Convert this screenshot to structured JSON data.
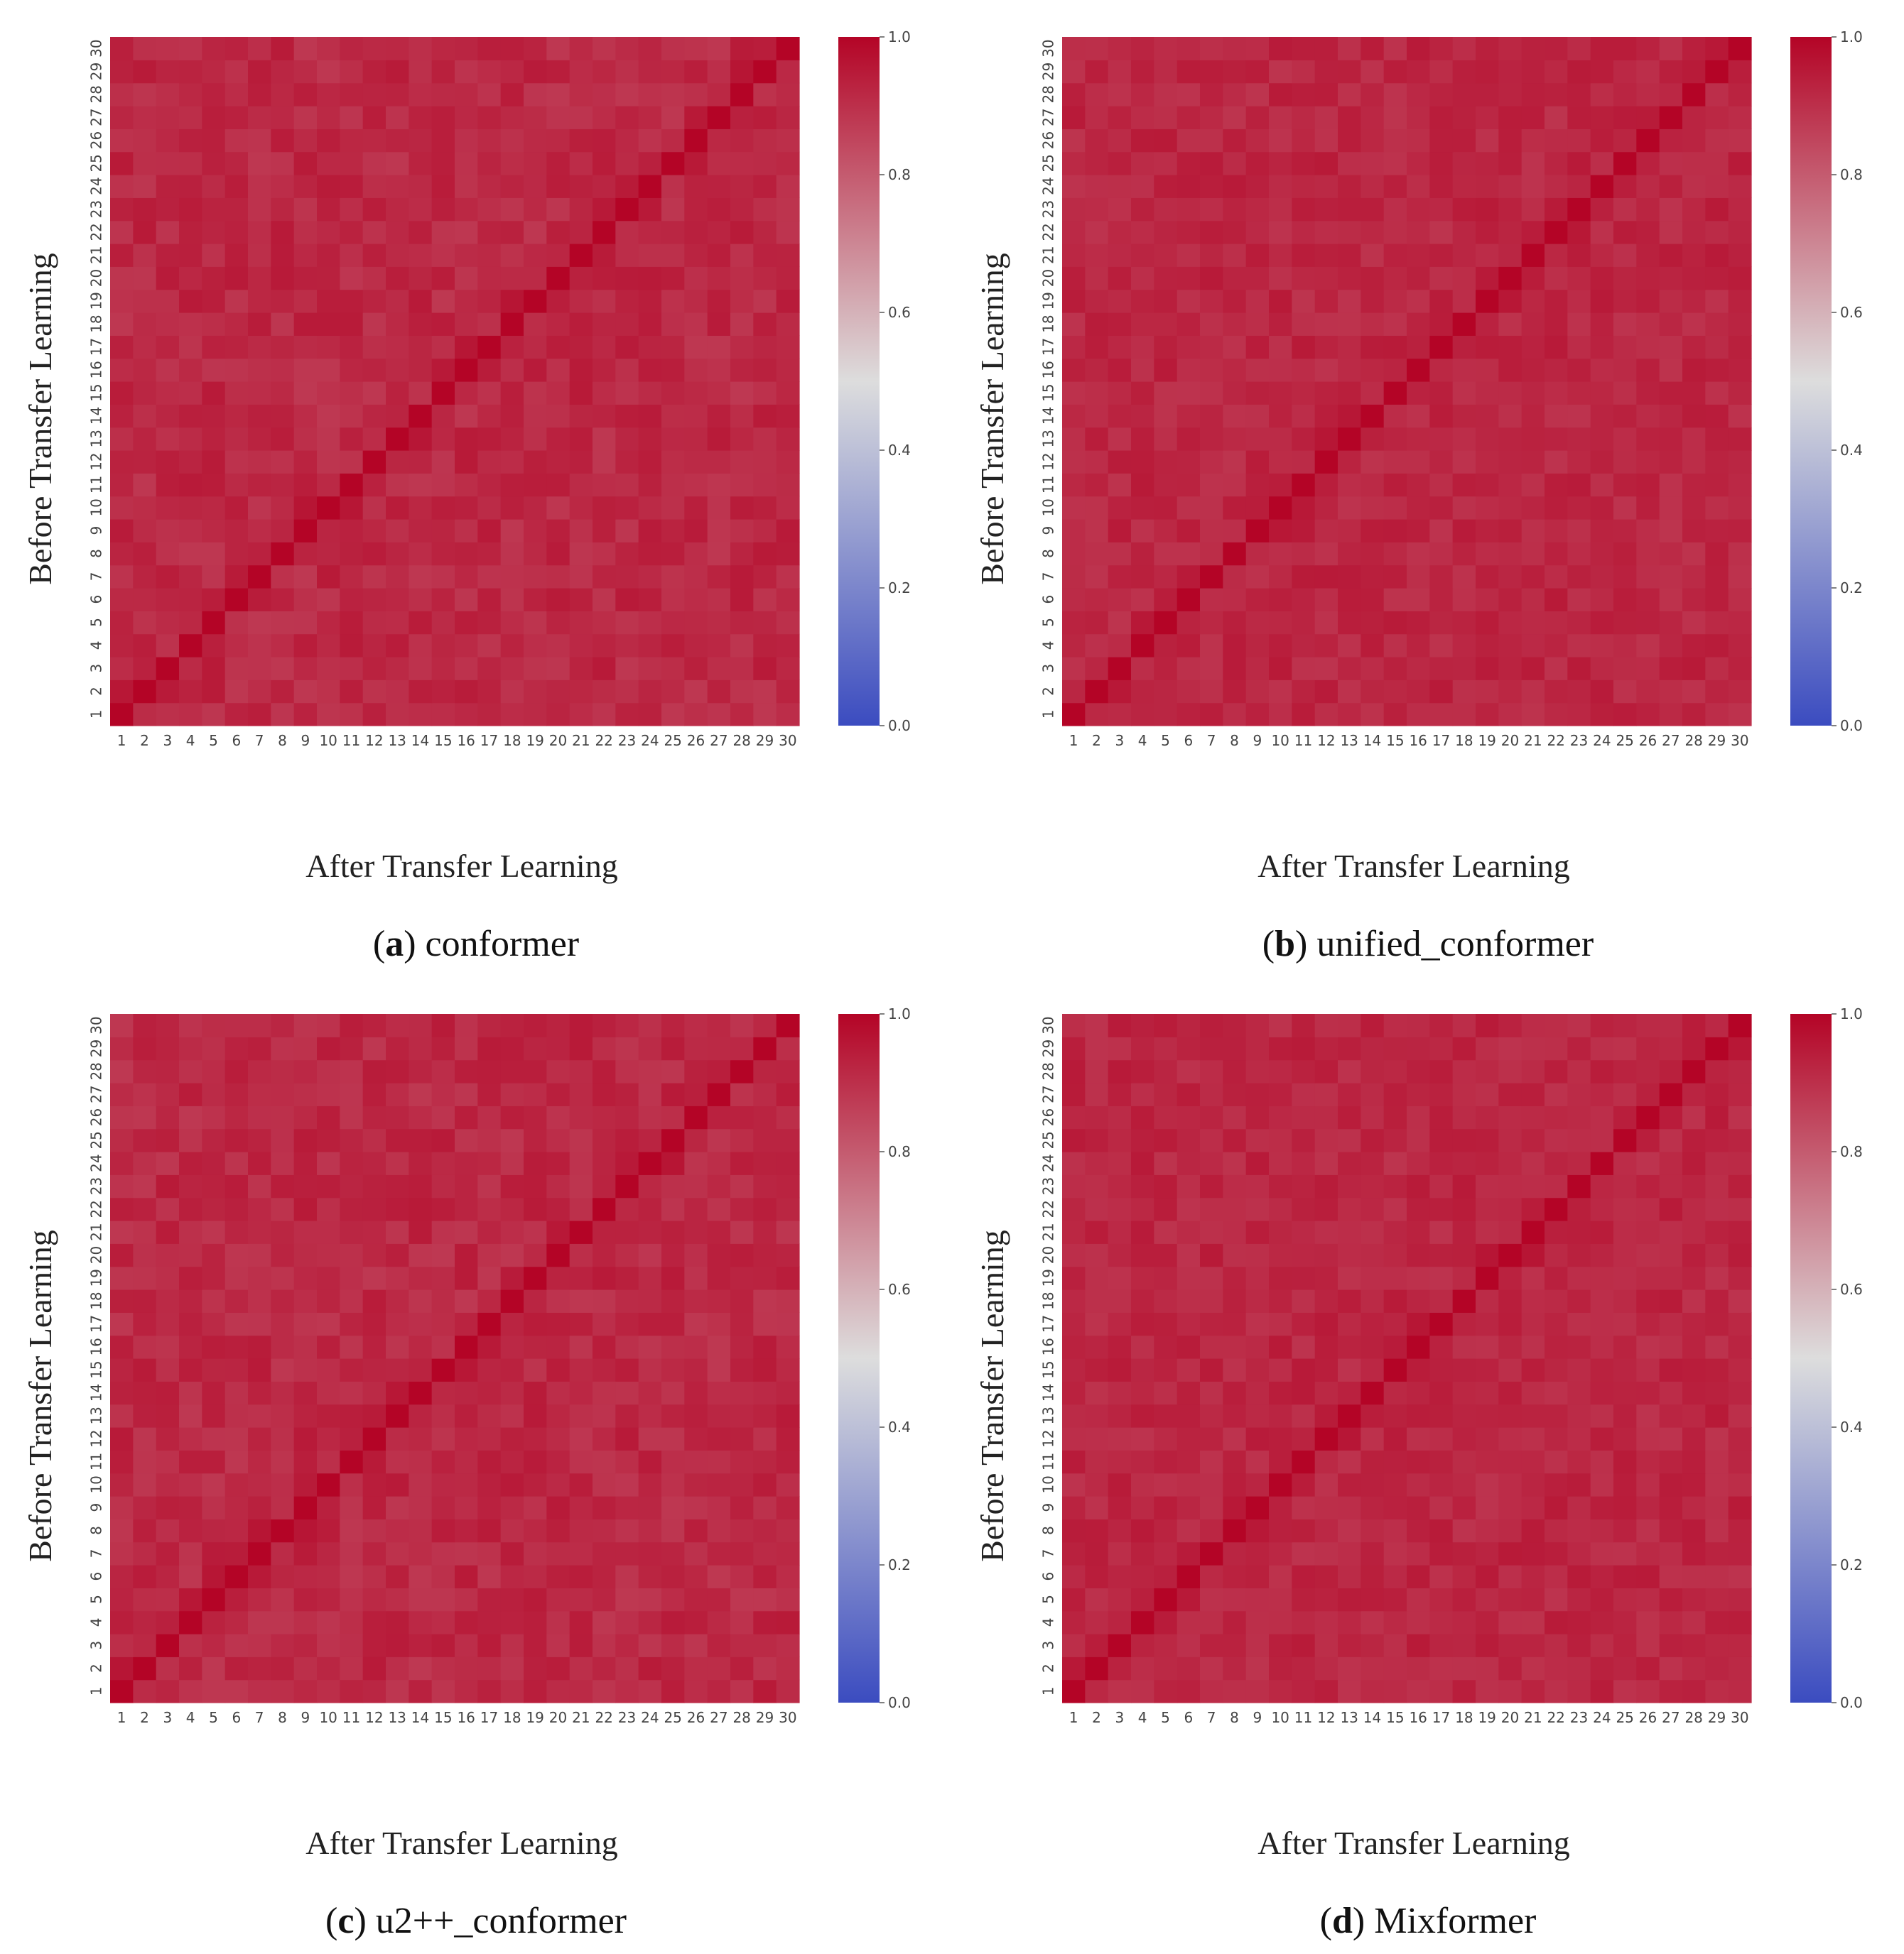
{
  "colorscale": {
    "name": "coolwarm",
    "low": "#3b4cc0",
    "mid": "#dddddd",
    "high": "#b40426"
  },
  "chart_data": [
    {
      "type": "heatmap",
      "caption_letter": "a",
      "caption_name": "conformer",
      "xlabel": "After Transfer Learning",
      "ylabel": "Before Transfer Learning",
      "x_ticks": [
        "1",
        "2",
        "3",
        "4",
        "5",
        "6",
        "7",
        "8",
        "9",
        "10",
        "11",
        "12",
        "13",
        "14",
        "15",
        "16",
        "17",
        "18",
        "19",
        "20",
        "21",
        "22",
        "23",
        "24",
        "25",
        "26",
        "27",
        "28",
        "29",
        "30"
      ],
      "y_ticks": [
        "1",
        "2",
        "3",
        "4",
        "5",
        "6",
        "7",
        "8",
        "9",
        "10",
        "11",
        "12",
        "13",
        "14",
        "15",
        "16",
        "17",
        "18",
        "19",
        "20",
        "21",
        "22",
        "23",
        "24",
        "25",
        "26",
        "27",
        "28",
        "29",
        "30"
      ],
      "diagonal_value": 1.0,
      "off_diagonal_range": [
        0.88,
        0.95
      ],
      "colorbar_ticks": [
        "0.0",
        "0.2",
        "0.4",
        "0.6",
        "0.8",
        "1.0"
      ],
      "vmin": 0.0,
      "vmax": 1.0,
      "seed": 11
    },
    {
      "type": "heatmap",
      "caption_letter": "b",
      "caption_name": "unified_conformer",
      "xlabel": "After Transfer Learning",
      "ylabel": "Before Transfer Learning",
      "x_ticks": [
        "1",
        "2",
        "3",
        "4",
        "5",
        "6",
        "7",
        "8",
        "9",
        "10",
        "11",
        "12",
        "13",
        "14",
        "15",
        "16",
        "17",
        "18",
        "19",
        "20",
        "21",
        "22",
        "23",
        "24",
        "25",
        "26",
        "27",
        "28",
        "29",
        "30"
      ],
      "y_ticks": [
        "1",
        "2",
        "3",
        "4",
        "5",
        "6",
        "7",
        "8",
        "9",
        "10",
        "11",
        "12",
        "13",
        "14",
        "15",
        "16",
        "17",
        "18",
        "19",
        "20",
        "21",
        "22",
        "23",
        "24",
        "25",
        "26",
        "27",
        "28",
        "29",
        "30"
      ],
      "diagonal_value": 1.0,
      "off_diagonal_range": [
        0.89,
        0.95
      ],
      "colorbar_ticks": [
        "0.0",
        "0.2",
        "0.4",
        "0.6",
        "0.8",
        "1.0"
      ],
      "vmin": 0.0,
      "vmax": 1.0,
      "seed": 23
    },
    {
      "type": "heatmap",
      "caption_letter": "c",
      "caption_name": "u2++_conformer",
      "xlabel": "After Transfer Learning",
      "ylabel": "Before Transfer Learning",
      "x_ticks": [
        "1",
        "2",
        "3",
        "4",
        "5",
        "6",
        "7",
        "8",
        "9",
        "10",
        "11",
        "12",
        "13",
        "14",
        "15",
        "16",
        "17",
        "18",
        "19",
        "20",
        "21",
        "22",
        "23",
        "24",
        "25",
        "26",
        "27",
        "28",
        "29",
        "30"
      ],
      "y_ticks": [
        "1",
        "2",
        "3",
        "4",
        "5",
        "6",
        "7",
        "8",
        "9",
        "10",
        "11",
        "12",
        "13",
        "14",
        "15",
        "16",
        "17",
        "18",
        "19",
        "20",
        "21",
        "22",
        "23",
        "24",
        "25",
        "26",
        "27",
        "28",
        "29",
        "30"
      ],
      "diagonal_value": 1.0,
      "off_diagonal_range": [
        0.88,
        0.95
      ],
      "colorbar_ticks": [
        "0.0",
        "0.2",
        "0.4",
        "0.6",
        "0.8",
        "1.0"
      ],
      "vmin": 0.0,
      "vmax": 1.0,
      "seed": 37
    },
    {
      "type": "heatmap",
      "caption_letter": "d",
      "caption_name": "Mixformer",
      "xlabel": "After Transfer Learning",
      "ylabel": "Before Transfer Learning",
      "x_ticks": [
        "1",
        "2",
        "3",
        "4",
        "5",
        "6",
        "7",
        "8",
        "9",
        "10",
        "11",
        "12",
        "13",
        "14",
        "15",
        "16",
        "17",
        "18",
        "19",
        "20",
        "21",
        "22",
        "23",
        "24",
        "25",
        "26",
        "27",
        "28",
        "29",
        "30"
      ],
      "y_ticks": [
        "1",
        "2",
        "3",
        "4",
        "5",
        "6",
        "7",
        "8",
        "9",
        "10",
        "11",
        "12",
        "13",
        "14",
        "15",
        "16",
        "17",
        "18",
        "19",
        "20",
        "21",
        "22",
        "23",
        "24",
        "25",
        "26",
        "27",
        "28",
        "29",
        "30"
      ],
      "diagonal_value": 1.0,
      "off_diagonal_range": [
        0.89,
        0.95
      ],
      "colorbar_ticks": [
        "0.0",
        "0.2",
        "0.4",
        "0.6",
        "0.8",
        "1.0"
      ],
      "vmin": 0.0,
      "vmax": 1.0,
      "seed": 53
    }
  ]
}
